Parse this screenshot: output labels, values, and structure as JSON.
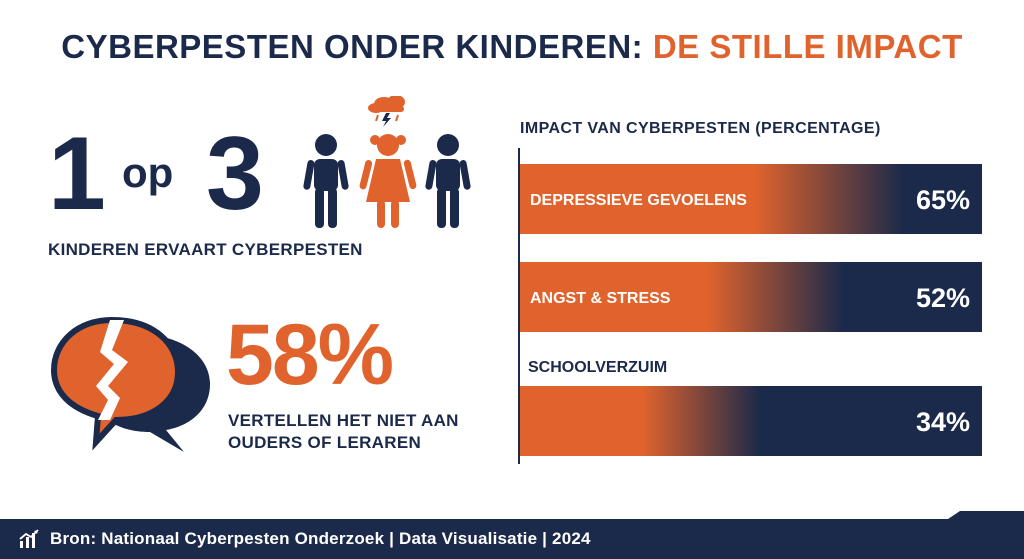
{
  "header": {
    "title_main": "CYBERPESTEN ONDER KINDEREN: ",
    "title_accent": "DE STILLE IMPACT"
  },
  "stat_one": {
    "number_a": "1",
    "connector": "op",
    "number_b": "3",
    "label": "KINDEREN ERVAART CYBERPESTEN"
  },
  "stat_two": {
    "value": "58%",
    "label_line1": "VERTELLEN HET NIET AAN",
    "label_line2": "OUDERS OF LERAREN"
  },
  "icons": {
    "children": "children-group-icon",
    "storm": "storm-cloud-icon",
    "bubbles": "broken-speech-bubbles-icon",
    "chart": "bar-chart-icon"
  },
  "colors": {
    "navy": "#1b2a4a",
    "orange": "#e0632d"
  },
  "chart_data": {
    "type": "bar",
    "title": "IMPACT VAN CYBERPESTEN (PERCENTAGE)",
    "categories": [
      "DEPRESSIEVE GEVOELENS",
      "ANGST & STRESS",
      "SCHOOLVERZUIM"
    ],
    "values": [
      65,
      52,
      34
    ],
    "value_labels": [
      "65%",
      "52%",
      "34%"
    ],
    "xlim": [
      0,
      100
    ],
    "orientation": "horizontal",
    "grid": false
  },
  "footer": {
    "text": "Bron: Nationaal Cyberpesten Onderzoek | Data Visualisatie | 2024"
  }
}
